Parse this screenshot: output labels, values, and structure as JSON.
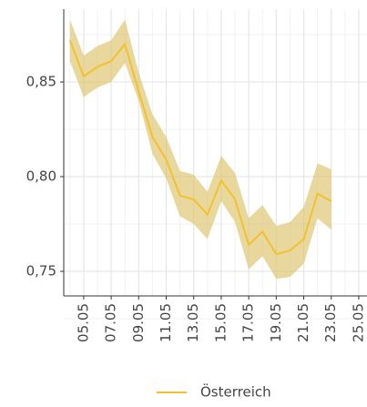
{
  "chart_data": {
    "type": "line",
    "x": [
      "04.05",
      "05.05",
      "06.05",
      "07.05",
      "08.05",
      "09.05",
      "10.05",
      "11.05",
      "12.05",
      "13.05",
      "14.05",
      "15.05",
      "16.05",
      "17.05",
      "18.05",
      "19.05",
      "20.05",
      "21.05",
      "22.05",
      "23.05"
    ],
    "series": [
      {
        "name": "Österreich",
        "color": "#f2c12e",
        "band_color": "#dcc36a",
        "values": [
          0.872,
          0.853,
          0.858,
          0.861,
          0.87,
          0.845,
          0.821,
          0.809,
          0.79,
          0.788,
          0.78,
          0.798,
          0.788,
          0.764,
          0.771,
          0.759,
          0.761,
          0.767,
          0.791,
          0.787
        ],
        "upper": [
          0.883,
          0.864,
          0.869,
          0.872,
          0.883,
          0.855,
          0.833,
          0.821,
          0.803,
          0.801,
          0.792,
          0.811,
          0.802,
          0.778,
          0.785,
          0.774,
          0.776,
          0.784,
          0.807,
          0.804
        ],
        "lower": [
          0.861,
          0.842,
          0.847,
          0.85,
          0.86,
          0.84,
          0.812,
          0.799,
          0.779,
          0.775,
          0.767,
          0.787,
          0.776,
          0.751,
          0.758,
          0.746,
          0.747,
          0.754,
          0.778,
          0.772
        ]
      }
    ],
    "ylim": [
      0.737,
      0.8885
    ],
    "yticks": [
      {
        "value": 0.75,
        "label": "0,75"
      },
      {
        "value": 0.8,
        "label": "0,80"
      },
      {
        "value": 0.85,
        "label": "0,85"
      }
    ],
    "xticks": [
      "05.05",
      "07.05",
      "09.05",
      "11.05",
      "13.05",
      "15.05",
      "17.05",
      "19.05",
      "21.05",
      "23.05",
      "25.05"
    ],
    "grid": true,
    "legend": "bottom"
  }
}
